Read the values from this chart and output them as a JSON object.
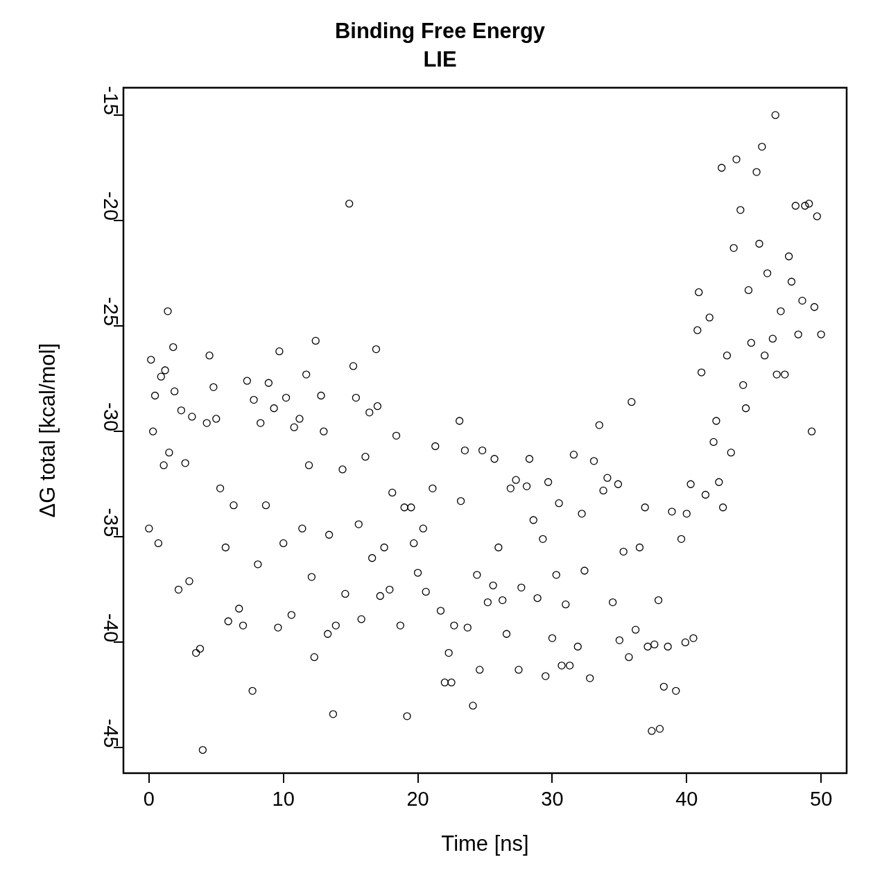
{
  "chart_data": {
    "type": "scatter",
    "title": "Binding Free Energy",
    "subtitle": "LIE",
    "xlabel": "Time [ns]",
    "ylabel": "ΔG total [kcal/mol]",
    "xlim": [
      -1.9,
      51.9
    ],
    "ylim": [
      -46.2,
      -13.7
    ],
    "xticks": [
      0,
      10,
      20,
      30,
      40,
      50
    ],
    "yticks": [
      -45,
      -40,
      -35,
      -30,
      -25,
      -20,
      -15
    ],
    "marker": "circle",
    "series": [
      {
        "color": "#000000",
        "x": [
          0,
          0.15,
          0.3,
          0.45,
          0.7,
          0.9,
          1.1,
          1.2,
          1.4,
          1.5,
          1.8,
          1.9,
          2.2,
          2.4,
          2.7,
          3.0,
          3.2,
          3.5,
          3.8,
          4.0,
          4.3,
          4.5,
          4.8,
          5.0,
          5.3,
          5.7,
          5.9,
          6.3,
          6.7,
          7.0,
          7.3,
          7.7,
          7.8,
          8.1,
          8.3,
          8.7,
          8.9,
          9.3,
          9.6,
          9.7,
          10.0,
          10.2,
          10.6,
          10.8,
          11.2,
          11.4,
          11.7,
          11.9,
          12.1,
          12.3,
          12.4,
          12.8,
          13.0,
          13.3,
          13.4,
          13.7,
          13.9,
          14.4,
          14.6,
          14.9,
          15.2,
          15.4,
          15.6,
          15.8,
          16.1,
          16.4,
          16.6,
          16.9,
          17.0,
          17.2,
          17.5,
          17.9,
          18.1,
          18.4,
          18.7,
          19.0,
          19.2,
          19.5,
          19.7,
          20.0,
          20.4,
          20.6,
          21.1,
          21.3,
          21.7,
          22.0,
          22.3,
          22.5,
          22.7,
          23.1,
          23.2,
          23.5,
          23.7,
          24.1,
          24.4,
          24.6,
          24.8,
          25.2,
          25.6,
          25.7,
          26.0,
          26.3,
          26.6,
          26.9,
          27.3,
          27.5,
          27.7,
          28.1,
          28.3,
          28.6,
          28.9,
          29.3,
          29.5,
          29.7,
          30.0,
          30.3,
          30.5,
          30.7,
          31.0,
          31.3,
          31.6,
          31.9,
          32.2,
          32.4,
          32.8,
          33.1,
          33.5,
          33.8,
          34.1,
          34.5,
          34.9,
          35.0,
          35.3,
          35.7,
          35.9,
          36.2,
          36.5,
          36.9,
          37.1,
          37.4,
          37.6,
          37.9,
          38.0,
          38.3,
          38.6,
          38.9,
          39.2,
          39.6,
          39.9,
          40.0,
          40.3,
          40.5,
          40.8,
          40.9,
          41.1,
          41.4,
          41.7,
          42.0,
          42.2,
          42.4,
          42.6,
          42.7,
          43.0,
          43.3,
          43.5,
          43.7,
          44.0,
          44.2,
          44.4,
          44.6,
          44.8,
          45.2,
          45.4,
          45.6,
          45.8,
          46.0,
          46.4,
          46.6,
          46.7,
          47.0,
          47.3,
          47.6,
          47.8,
          48.1,
          48.3,
          48.6,
          48.8,
          49.1,
          49.3,
          49.5,
          49.7,
          50.0
        ],
        "values": [
          -34.6,
          -26.6,
          -30.0,
          -28.3,
          -35.3,
          -27.4,
          -31.6,
          -27.1,
          -24.3,
          -31.0,
          -26.0,
          -28.1,
          -37.5,
          -29.0,
          -31.5,
          -37.1,
          -29.3,
          -40.5,
          -40.3,
          -45.1,
          -29.6,
          -26.4,
          -27.9,
          -29.4,
          -32.7,
          -35.5,
          -39.0,
          -33.5,
          -38.4,
          -39.2,
          -27.6,
          -42.3,
          -28.5,
          -36.3,
          -29.6,
          -33.5,
          -27.7,
          -28.9,
          -39.3,
          -26.2,
          -35.3,
          -28.4,
          -38.7,
          -29.8,
          -29.4,
          -34.6,
          -27.3,
          -31.6,
          -36.9,
          -40.7,
          -25.7,
          -28.3,
          -30.0,
          -39.6,
          -34.9,
          -43.4,
          -39.2,
          -31.8,
          -37.7,
          -19.2,
          -26.9,
          -28.4,
          -34.4,
          -38.9,
          -31.2,
          -29.1,
          -36.0,
          -26.1,
          -28.8,
          -37.8,
          -35.5,
          -37.5,
          -32.9,
          -30.2,
          -39.2,
          -33.6,
          -43.5,
          -33.6,
          -35.3,
          -36.7,
          -34.6,
          -37.6,
          -32.7,
          -30.7,
          -38.5,
          -41.9,
          -40.5,
          -41.9,
          -39.2,
          -29.5,
          -33.3,
          -30.9,
          -39.3,
          -43.0,
          -36.8,
          -41.3,
          -30.9,
          -38.1,
          -37.3,
          -31.3,
          -35.5,
          -38.0,
          -39.6,
          -32.7,
          -32.3,
          -41.3,
          -37.4,
          -32.6,
          -31.3,
          -34.2,
          -37.9,
          -35.1,
          -41.6,
          -32.4,
          -39.8,
          -36.8,
          -33.4,
          -41.1,
          -38.2,
          -41.1,
          -31.1,
          -40.2,
          -33.9,
          -36.6,
          -41.7,
          -31.4,
          -29.7,
          -32.8,
          -32.2,
          -38.1,
          -32.5,
          -39.9,
          -35.7,
          -40.7,
          -28.6,
          -39.4,
          -35.5,
          -33.6,
          -40.2,
          -44.2,
          -40.1,
          -38.0,
          -44.1,
          -42.1,
          -40.2,
          -33.8,
          -42.3,
          -35.1,
          -40.0,
          -33.9,
          -32.5,
          -39.8,
          -25.2,
          -23.4,
          -27.2,
          -33.0,
          -24.6,
          -30.5,
          -29.5,
          -32.4,
          -17.5,
          -33.6,
          -26.4,
          -31.0,
          -21.3,
          -17.1,
          -19.5,
          -27.8,
          -28.9,
          -23.3,
          -25.8,
          -17.7,
          -21.1,
          -16.5,
          -26.4,
          -22.5,
          -25.6,
          -15.0,
          -27.3,
          -24.3,
          -27.3,
          -21.7,
          -22.9,
          -19.3,
          -25.4,
          -23.8,
          -19.3,
          -19.2,
          -30.0,
          -24.1,
          -19.8,
          -25.4
        ]
      }
    ]
  }
}
